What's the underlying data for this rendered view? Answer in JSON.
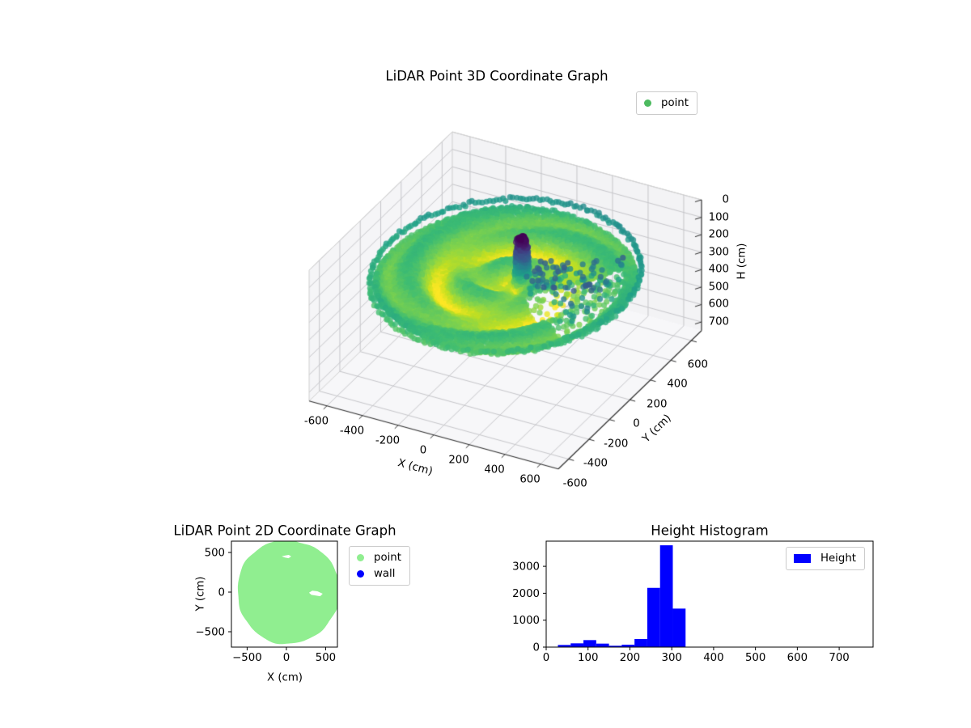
{
  "figure": {
    "background": "#ffffff"
  },
  "chart_data": [
    {
      "type": "scatter3d",
      "title": "LiDAR Point 3D Coordinate Graph",
      "xlabel": "X (cm)",
      "ylabel": "Y (cm)",
      "zlabel": "H (cm)",
      "x_ticks": [
        -600,
        -400,
        -200,
        0,
        200,
        400,
        600
      ],
      "y_ticks": [
        -600,
        -400,
        -200,
        0,
        200,
        400,
        600
      ],
      "z_ticks": [
        0,
        100,
        200,
        300,
        400,
        500,
        600,
        700
      ],
      "xlim": [
        -700,
        700
      ],
      "ylim": [
        -700,
        700
      ],
      "zlim": [
        0,
        750
      ],
      "z_axis_inverted": true,
      "grid": true,
      "legend": [
        {
          "label": "point",
          "color": "#4cba5f"
        }
      ],
      "colormap": "viridis",
      "colormap_stops": [
        [
          0,
          "#440154"
        ],
        [
          0.13,
          "#471d6c"
        ],
        [
          0.25,
          "#3e4a89"
        ],
        [
          0.38,
          "#34618d"
        ],
        [
          0.5,
          "#26828e"
        ],
        [
          0.63,
          "#1fa088"
        ],
        [
          0.75,
          "#3dbc74"
        ],
        [
          0.87,
          "#84d44b"
        ],
        [
          0.95,
          "#c5e021"
        ],
        [
          1,
          "#fde725"
        ]
      ],
      "color_value_domain": [
        28,
        333
      ],
      "cloud_summary": {
        "floor_disc_radius_cm": 660,
        "floor_height_cm": 300,
        "rim_height_cm": 230,
        "column_center_xy_cm": [
          60,
          60
        ],
        "column_height_range_cm": [
          30,
          300
        ],
        "empty_sector_toward_plus_x_deg": [
          -33,
          36
        ]
      }
    },
    {
      "type": "scatter",
      "title": "LiDAR Point 2D Coordinate Graph",
      "xlabel": "X (cm)",
      "ylabel": "Y (cm)",
      "x_ticks": [
        -500,
        0,
        500
      ],
      "y_ticks": [
        -500,
        0,
        500
      ],
      "xlim": [
        -700,
        650
      ],
      "ylim": [
        -694,
        643
      ],
      "legend": [
        {
          "label": "point",
          "color": "#90ee90"
        },
        {
          "label": "wall",
          "color": "#0000ff"
        }
      ],
      "blob": {
        "center": [
          25,
          5
        ],
        "radius": 655,
        "holes": [
          [
            [
              -60,
              452
            ],
            [
              -18,
              436
            ],
            [
              28,
              428
            ],
            [
              62,
              450
            ],
            [
              30,
              470
            ],
            [
              -14,
              462
            ]
          ],
          [
            [
              288,
              -8
            ],
            [
              330,
              18
            ],
            [
              395,
              10
            ],
            [
              462,
              -20
            ],
            [
              430,
              -52
            ],
            [
              368,
              -42
            ],
            [
              318,
              -35
            ]
          ]
        ]
      }
    },
    {
      "type": "histogram",
      "title": "Height Histogram",
      "series_name": "Height",
      "bar_color": "#0000ff",
      "x_ticks": [
        0,
        100,
        200,
        300,
        400,
        500,
        600,
        700
      ],
      "y_ticks": [
        0,
        1000,
        2000,
        3000
      ],
      "xlim": [
        0,
        781
      ],
      "ylim": [
        0,
        3934
      ],
      "bin_edges": [
        28,
        58.5,
        89,
        119.5,
        150,
        180.5,
        211,
        241.5,
        272,
        302.5,
        333
      ],
      "counts": [
        80,
        140,
        260,
        130,
        50,
        90,
        300,
        2200,
        3780,
        1430
      ],
      "legend": [
        {
          "label": "Height",
          "color": "#0000ff"
        }
      ]
    }
  ]
}
